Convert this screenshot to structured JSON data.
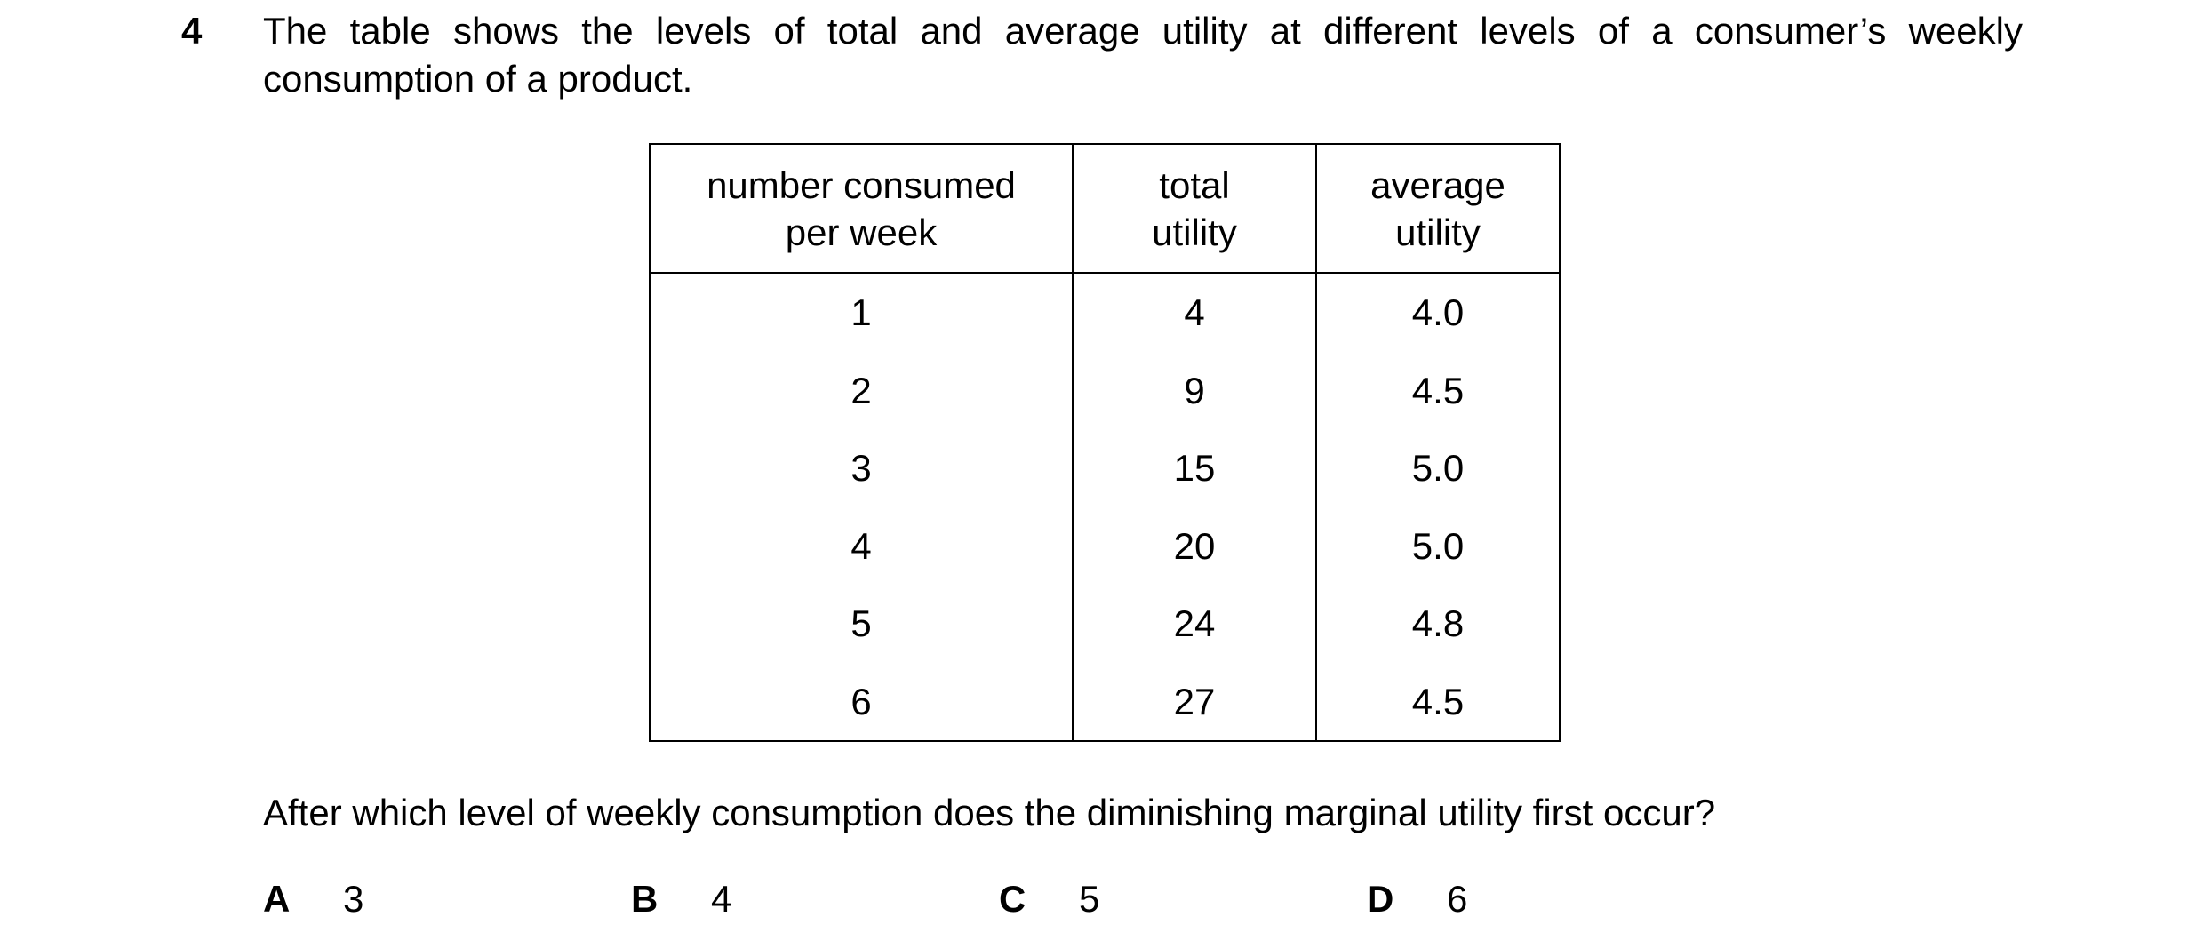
{
  "question_number": "4",
  "stem": {
    "line1": "The table shows the levels of total and average utility at different levels of a consumer’s weekly",
    "line2": "consumption of a product."
  },
  "table": {
    "headers": {
      "col1_line1": "number consumed",
      "col1_line2": "per week",
      "col2_line1": "total",
      "col2_line2": "utility",
      "col3_line1": "average",
      "col3_line2": "utility"
    },
    "rows": [
      {
        "number": "1",
        "total": "4",
        "average": "4.0"
      },
      {
        "number": "2",
        "total": "9",
        "average": "4.5"
      },
      {
        "number": "3",
        "total": "15",
        "average": "5.0"
      },
      {
        "number": "4",
        "total": "20",
        "average": "5.0"
      },
      {
        "number": "5",
        "total": "24",
        "average": "4.8"
      },
      {
        "number": "6",
        "total": "27",
        "average": "4.5"
      }
    ]
  },
  "question": "After which level of weekly consumption does the diminishing marginal utility first occur?",
  "options": [
    {
      "letter": "A",
      "value": "3"
    },
    {
      "letter": "B",
      "value": "4"
    },
    {
      "letter": "C",
      "value": "5"
    },
    {
      "letter": "D",
      "value": "6"
    }
  ]
}
